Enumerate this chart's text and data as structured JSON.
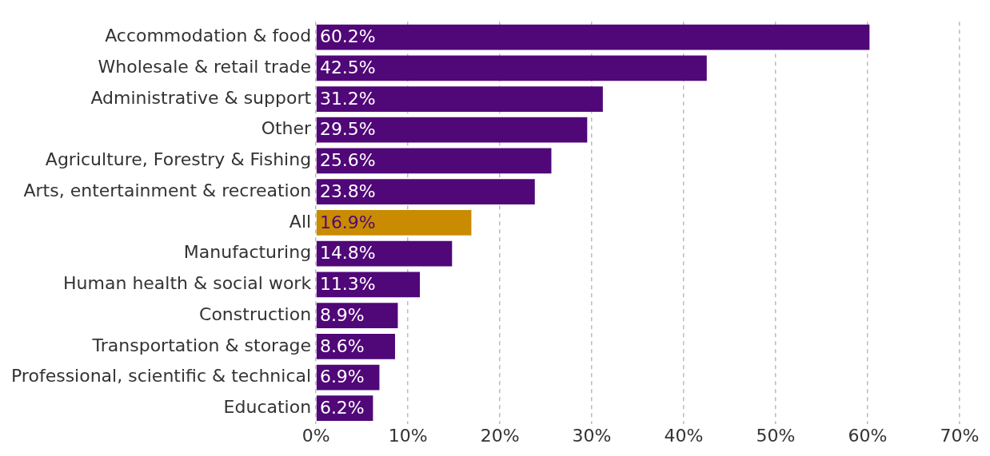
{
  "chart_data": {
    "type": "bar",
    "orientation": "horizontal",
    "categories": [
      "Accommodation & food",
      "Wholesale & retail trade",
      "Administrative & support",
      "Other",
      "Agriculture, Forestry & Fishing",
      "Arts, entertainment & recreation",
      "All",
      "Manufacturing",
      "Human health & social work",
      "Construction",
      "Transportation & storage",
      "Professional, scientific & technical",
      "Education"
    ],
    "values": [
      60.2,
      42.5,
      31.2,
      29.5,
      25.6,
      23.8,
      16.9,
      14.8,
      11.3,
      8.9,
      8.6,
      6.9,
      6.2
    ],
    "value_labels": [
      "60.2%",
      "42.5%",
      "31.2%",
      "29.5%",
      "25.6%",
      "23.8%",
      "16.9%",
      "14.8%",
      "11.3%",
      "8.9%",
      "8.6%",
      "6.9%",
      "6.2%"
    ],
    "colors": [
      "#500778",
      "#500778",
      "#500778",
      "#500778",
      "#500778",
      "#500778",
      "#c98b00",
      "#500778",
      "#500778",
      "#500778",
      "#500778",
      "#500778",
      "#500778"
    ],
    "xlim": [
      0,
      70
    ],
    "xticks": [
      {
        "value": 0,
        "label": "0%"
      },
      {
        "value": 10,
        "label": "10%"
      },
      {
        "value": 20,
        "label": "20%"
      },
      {
        "value": 30,
        "label": "30%"
      },
      {
        "value": 40,
        "label": "40%"
      },
      {
        "value": 50,
        "label": "50%"
      },
      {
        "value": 60,
        "label": "60%"
      },
      {
        "value": 70,
        "label": "70%"
      }
    ],
    "grid": "x",
    "line_style": "dashed",
    "legend": false
  }
}
